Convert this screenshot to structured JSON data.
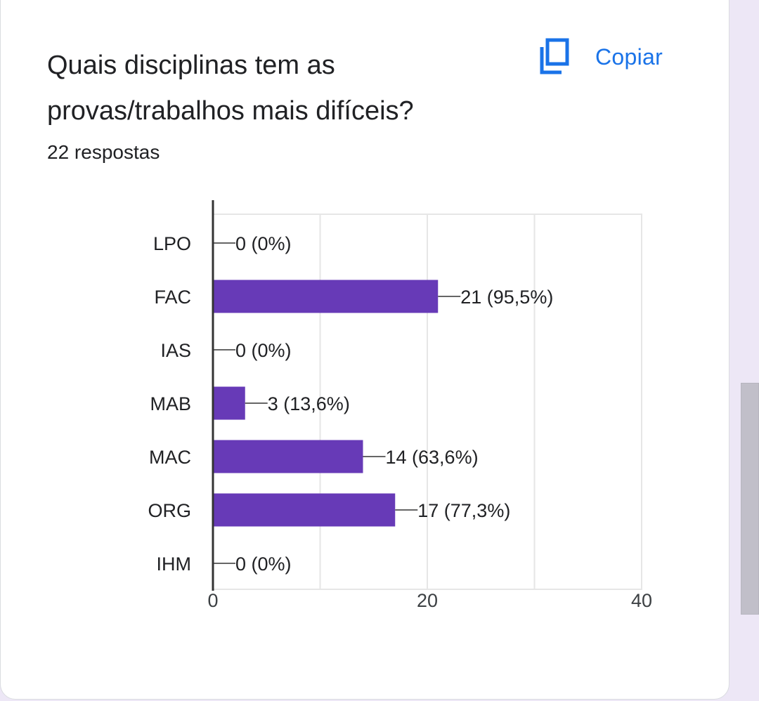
{
  "card": {
    "title": "Quais disciplinas tem as provas/trabalhos mais difíceis?",
    "responses": "22 respostas",
    "copy_label": "Copiar",
    "copy_icon": "copy-icon"
  },
  "colors": {
    "bar": "#673ab7",
    "accent": "#1a73e8",
    "text": "#202124",
    "grid": "#e6e6e6",
    "axis": "#333333"
  },
  "chart_data": {
    "type": "bar",
    "orientation": "horizontal",
    "categories": [
      "LPO",
      "FAC",
      "IAS",
      "MAB",
      "MAC",
      "ORG",
      "IHM"
    ],
    "values": [
      0,
      21,
      0,
      3,
      14,
      17,
      0
    ],
    "labels": [
      "0 (0%)",
      "21 (95,5%)",
      "0 (0%)",
      "3 (13,6%)",
      "14 (63,6%)",
      "17 (77,3%)",
      "0 (0%)"
    ],
    "xlim": [
      0,
      40
    ],
    "xticks": [
      0,
      20,
      40
    ],
    "grid": true,
    "legend": "none"
  }
}
